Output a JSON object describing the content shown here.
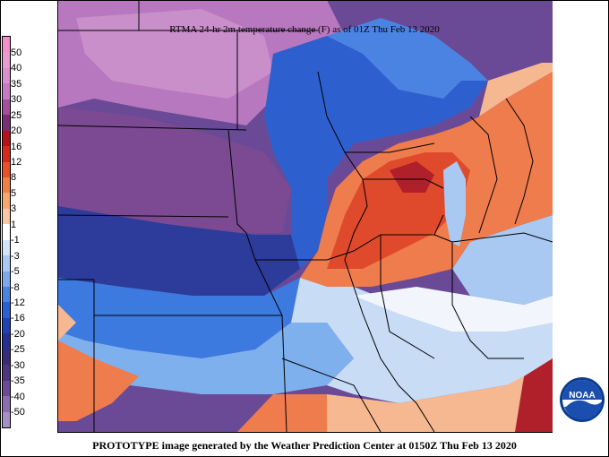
{
  "title": "RTMA 24-hr 2m temperature change (F) as of 01Z Thu Feb 13 2020",
  "footer": "PROTOTYPE image generated by the Weather Prediction Center at 0150Z Thu Feb 13 2020",
  "logo_text": "NOAA",
  "legend": {
    "labels": [
      "50",
      "40",
      "35",
      "30",
      "25",
      "20",
      "16",
      "12",
      "8",
      "5",
      "3",
      "1",
      "-1",
      "-3",
      "-5",
      "-8",
      "-12",
      "-16",
      "-20",
      "-25",
      "-30",
      "-35",
      "-40",
      "-50"
    ],
    "colors": [
      "#f08fc8",
      "#e89ad2",
      "#d98fcf",
      "#c67ac4",
      "#a54f9a",
      "#7a2e73",
      "#b3121a",
      "#d5291d",
      "#e9502a",
      "#f07e48",
      "#f6a66e",
      "#f8c8a6",
      "#ffffff",
      "#d4e4f8",
      "#a9c9f2",
      "#7da8ea",
      "#4c82e0",
      "#2b5fd4",
      "#2141b7",
      "#27308f",
      "#3a2b7a",
      "#50357f",
      "#6a4b95",
      "#8a6fb0",
      "#a790c4"
    ]
  },
  "colors": {
    "pink_cold": "#c78fc8",
    "purple": "#7d4a8e",
    "dark_purple": "#5b3580",
    "dark_blue": "#2e3d9e",
    "blue": "#2f6ed8",
    "light_blue": "#7fb0ee",
    "pale_blue": "#c8dcf6",
    "white": "#f4f7fc",
    "peach": "#f6b890",
    "orange": "#ee7c4c",
    "red": "#df4a2c",
    "dark_red": "#b0202a",
    "border": "#000000"
  }
}
